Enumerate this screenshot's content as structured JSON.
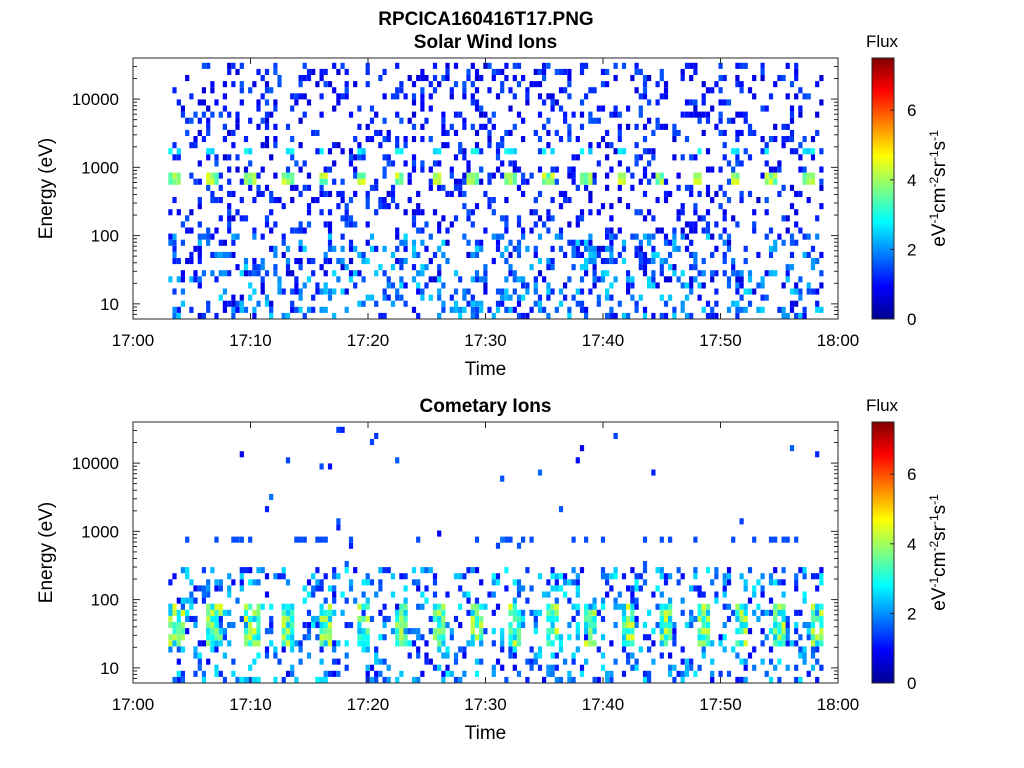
{
  "figure": {
    "title": "RPCICA160416T17.PNG"
  },
  "chart_data": [
    {
      "type": "heatmap",
      "title": "Solar Wind Ions",
      "xlabel": "Time",
      "ylabel": "Energy (eV)",
      "y_scale": "log",
      "x_ticks": [
        "17:00",
        "17:10",
        "17:20",
        "17:30",
        "17:40",
        "17:50",
        "18:00"
      ],
      "xlim": [
        "17:00",
        "18:00"
      ],
      "y_ticks": [
        {
          "value": 10,
          "label": "10"
        },
        {
          "value": 100,
          "label": "100"
        },
        {
          "value": 1000,
          "label": "1000"
        },
        {
          "value": 10000,
          "label": "10000"
        }
      ],
      "ylim": [
        6,
        40000
      ],
      "colorbar": {
        "title": "Flux",
        "label": "eV-1cm-2sr-1s-1",
        "range": [
          0,
          7.5
        ],
        "ticks": [
          "0",
          "2",
          "4",
          "6"
        ],
        "colormap": "jet"
      },
      "data_start_time": "17:03",
      "data_end_time": "17:59",
      "features": [
        {
          "description": "proton peak",
          "energy_ev": 700,
          "flux_level": 4.5
        },
        {
          "description": "alpha peak",
          "energy_ev": 1600,
          "flux_level": 3.0
        },
        {
          "description": "sparse background",
          "flux_level": 1.0
        }
      ]
    },
    {
      "type": "heatmap",
      "title": "Cometary Ions",
      "xlabel": "Time",
      "ylabel": "Energy (eV)",
      "y_scale": "log",
      "x_ticks": [
        "17:00",
        "17:10",
        "17:20",
        "17:30",
        "17:40",
        "17:50",
        "18:00"
      ],
      "xlim": [
        "17:00",
        "18:00"
      ],
      "y_ticks": [
        {
          "value": 10,
          "label": "10"
        },
        {
          "value": 100,
          "label": "100"
        },
        {
          "value": 1000,
          "label": "1000"
        },
        {
          "value": 10000,
          "label": "10000"
        }
      ],
      "ylim": [
        6,
        40000
      ],
      "colorbar": {
        "title": "Flux",
        "label": "eV-1cm-2sr-1s-1",
        "range": [
          0,
          7.5
        ],
        "ticks": [
          "0",
          "2",
          "4",
          "6"
        ],
        "colormap": "jet"
      },
      "data_start_time": "17:03",
      "data_end_time": "17:59",
      "features": [
        {
          "description": "low-energy cometary ion population",
          "energy_ev_range": [
            20,
            80
          ],
          "flux_level": 4.5
        },
        {
          "description": "weak band",
          "energy_ev": 700,
          "flux_level": 1.5
        }
      ]
    }
  ]
}
